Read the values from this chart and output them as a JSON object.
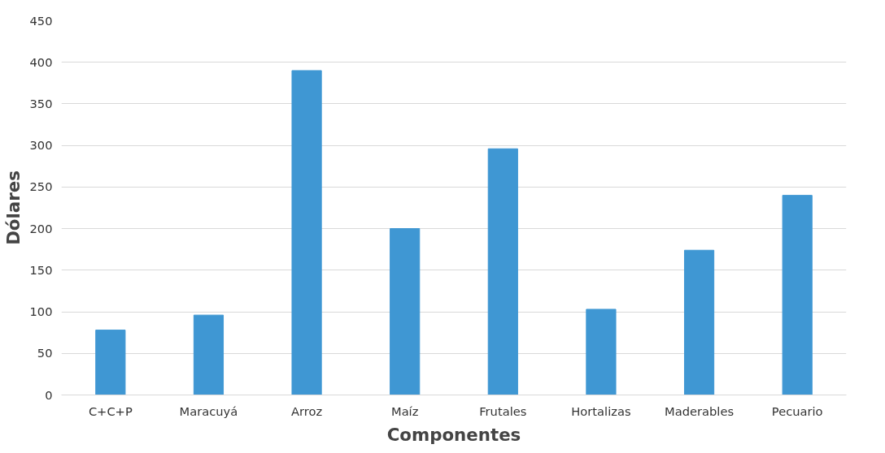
{
  "chart_data": {
    "type": "bar",
    "xlabel": "Componentes",
    "ylabel": "Dólares",
    "categories": [
      "C+C+P",
      "Maracuyá",
      "Arroz",
      "Maíz",
      "Frutales",
      "Hortalizas",
      "Maderables",
      "Pecuario"
    ],
    "values": [
      78,
      96,
      390,
      200,
      296,
      103,
      174,
      240
    ],
    "color": "#3f97d3",
    "ylim": [
      0,
      450
    ],
    "yticks": [
      0,
      50,
      100,
      150,
      200,
      250,
      300,
      350,
      400,
      450
    ],
    "grid": "y"
  }
}
